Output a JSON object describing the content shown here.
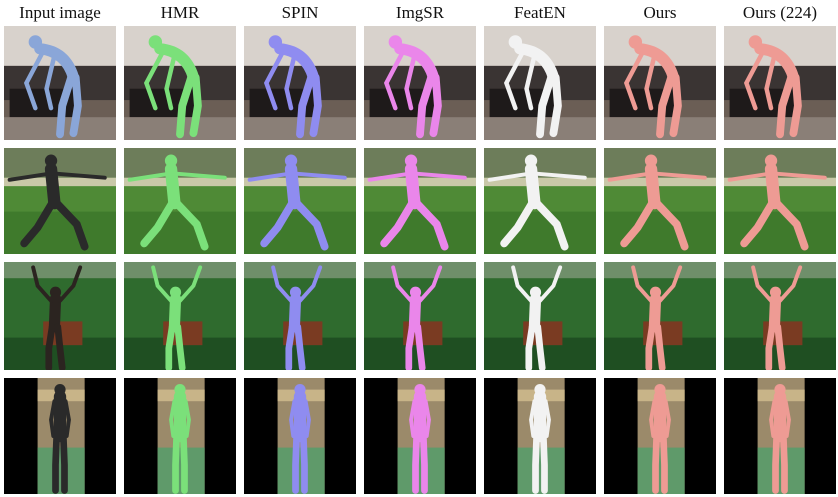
{
  "figure": {
    "columns": [
      {
        "key": "input",
        "label": "Input image"
      },
      {
        "key": "hmr",
        "label": "HMR"
      },
      {
        "key": "spin",
        "label": "SPIN"
      },
      {
        "key": "imgsr",
        "label": "ImgSR"
      },
      {
        "key": "featen",
        "label": "FeatEN"
      },
      {
        "key": "ours",
        "label": "Ours"
      },
      {
        "key": "ours224",
        "label": "Ours (224)"
      }
    ],
    "mesh_colors": {
      "input": "",
      "hmr": "#7be07a",
      "spin": "#8f8cf0",
      "imgsr": "#ea86ea",
      "featen": "#f2f2f2",
      "ours": "#ee9b94",
      "ours224": "#ee9b94"
    },
    "rows": [
      {
        "scene": "indoor-bending",
        "pose": "bend"
      },
      {
        "scene": "grass-field",
        "pose": "lunge"
      },
      {
        "scene": "green-room",
        "pose": "arms-up"
      },
      {
        "scene": "gym-court",
        "pose": "stand"
      }
    ]
  }
}
